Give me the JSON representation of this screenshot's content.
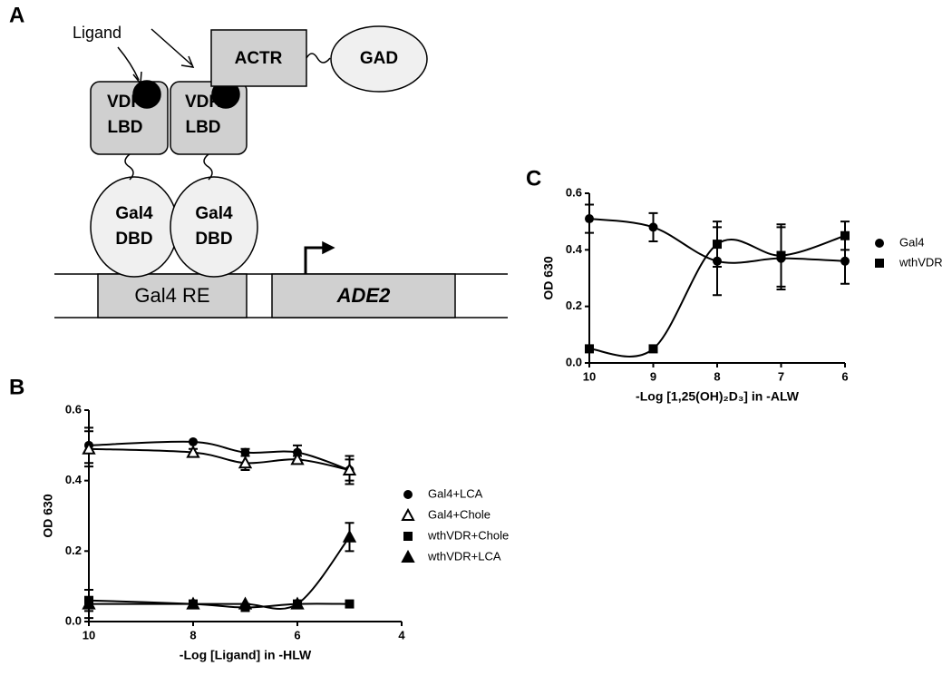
{
  "panels": [
    "A",
    "B",
    "C"
  ],
  "diagram": {
    "ligand": "Ligand",
    "nodes": [
      {
        "lines": [
          "VDR",
          "LBD"
        ]
      },
      {
        "lines": [
          "VDR",
          "LBD"
        ]
      },
      {
        "lines": [
          "Gal4",
          "DBD"
        ]
      },
      {
        "lines": [
          "Gal4",
          "DBD"
        ]
      },
      {
        "lines": [
          "ACTR"
        ]
      },
      {
        "lines": [
          "GAD"
        ]
      },
      {
        "lines": [
          "Gal4 RE"
        ]
      },
      {
        "lines": [
          "ADE2"
        ]
      }
    ]
  },
  "chart_data": [
    {
      "type": "scatter",
      "x_label": "-Log [Ligand] in -HLW",
      "y_label": "OD 630",
      "xlim": [
        10,
        4
      ],
      "xticks": [
        10,
        8,
        6,
        4
      ],
      "ylim": [
        0,
        0.6
      ],
      "yticks": [
        {
          "value": 0,
          "label": "0.0"
        },
        0.2,
        0.4,
        0.6
      ],
      "x": [
        10,
        8,
        7,
        6,
        5
      ],
      "series": [
        {
          "name": "Gal4+LCA",
          "marker": "circle",
          "color": "#000000",
          "values": [
            0.5,
            0.51,
            0.48,
            0.48,
            0.43
          ],
          "errors": [
            0.05,
            0.0,
            0.01,
            0.02,
            0.03
          ]
        },
        {
          "name": "Gal4+Chole",
          "marker": "triangle-open",
          "color": "#000000",
          "values": [
            0.49,
            0.48,
            0.45,
            0.46,
            0.43
          ],
          "errors": [
            0.05,
            0.01,
            0.02,
            0.01,
            0.04
          ]
        },
        {
          "name": "wthVDR+Chole",
          "marker": "square",
          "color": "#000000",
          "values": [
            0.06,
            0.05,
            0.04,
            0.05,
            0.05
          ],
          "errors": [
            0.03,
            0.0,
            0.0,
            0.0,
            0.0
          ]
        },
        {
          "name": "wthVDR+LCA",
          "marker": "triangle",
          "color": "#000000",
          "values": [
            0.05,
            0.05,
            0.05,
            0.05,
            0.24
          ],
          "errors": [
            0.04,
            0.0,
            0.0,
            0.0,
            0.04
          ]
        }
      ]
    },
    {
      "type": "scatter",
      "x_label": "-Log [1,25(OH)₂D₃] in -ALW",
      "y_label": "OD 630",
      "xlim": [
        10,
        6
      ],
      "xticks": [
        10,
        9,
        8,
        7,
        6
      ],
      "ylim": [
        0,
        0.6
      ],
      "yticks": [
        {
          "value": 0,
          "label": "0.0"
        },
        0.2,
        0.4,
        0.6
      ],
      "x": [
        10,
        9,
        8,
        7,
        6
      ],
      "series": [
        {
          "name": "Gal4",
          "marker": "circle",
          "color": "#000000",
          "values": [
            0.51,
            0.48,
            0.36,
            0.37,
            0.36
          ],
          "errors": [
            0.05,
            0.05,
            0.12,
            0.11,
            0.08
          ]
        },
        {
          "name": "wthVDR",
          "marker": "square",
          "color": "#000000",
          "values": [
            0.05,
            0.05,
            0.42,
            0.38,
            0.45
          ],
          "errors": [
            0.0,
            0.0,
            0.08,
            0.11,
            0.05
          ]
        }
      ]
    }
  ]
}
